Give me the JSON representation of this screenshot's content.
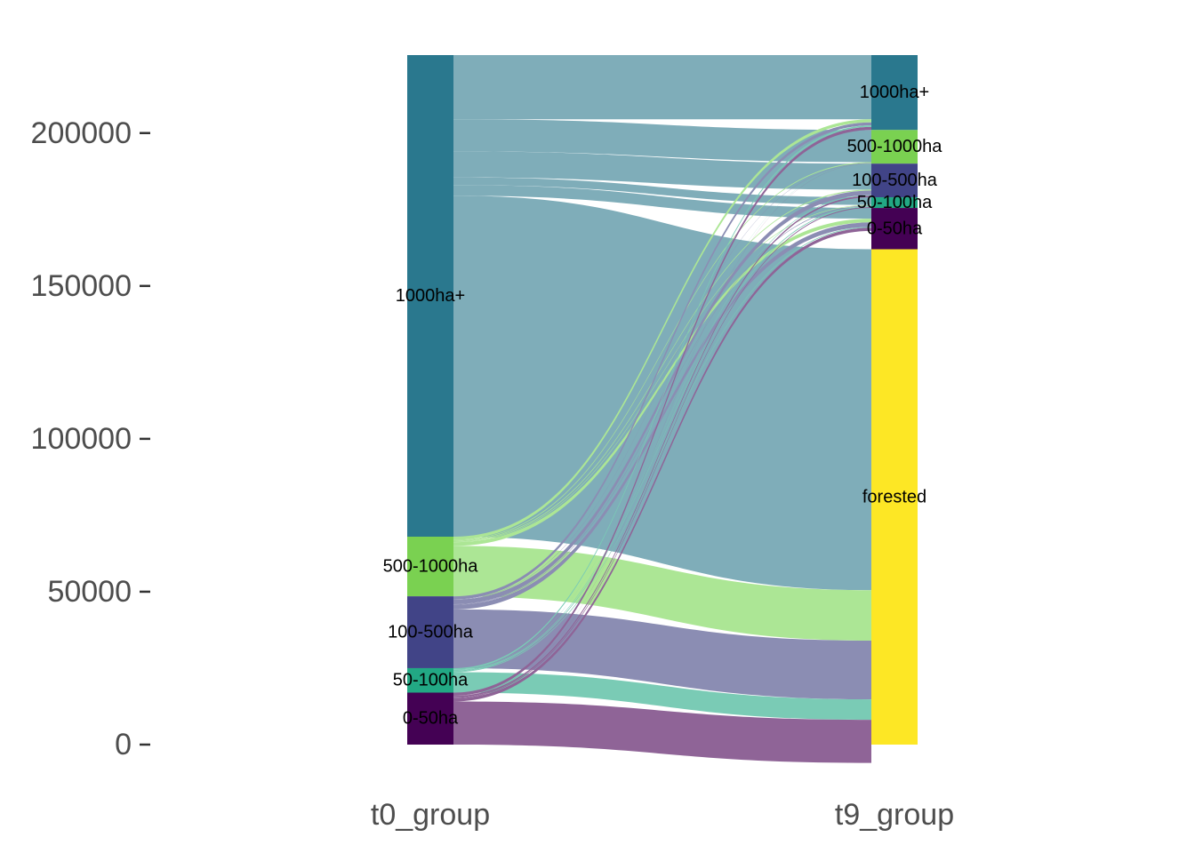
{
  "chart_data": {
    "type": "alluvial",
    "title": "",
    "xlabel": "",
    "ylabel": "",
    "ylim": [
      0,
      225500
    ],
    "y_ticks": [
      0,
      50000,
      100000,
      150000,
      200000
    ],
    "y_tick_labels": [
      "0",
      "50000",
      "100000",
      "150000",
      "200000"
    ],
    "axes": [
      "t0_group",
      "t9_group"
    ],
    "strata": {
      "t0_group": [
        {
          "name": "1000ha+",
          "value": 157500,
          "color": "#2a788e"
        },
        {
          "name": "500-1000ha",
          "value": 19500,
          "color": "#7ad151"
        },
        {
          "name": "100-500ha",
          "value": 23500,
          "color": "#414487"
        },
        {
          "name": "50-100ha",
          "value": 8000,
          "color": "#22a884"
        },
        {
          "name": "0-50ha",
          "value": 17000,
          "color": "#440154"
        }
      ],
      "t9_group": [
        {
          "name": "1000ha+",
          "value": 24500,
          "color": "#2a788e"
        },
        {
          "name": "500-1000ha",
          "value": 11000,
          "color": "#7ad151"
        },
        {
          "name": "100-500ha",
          "value": 11000,
          "color": "#414487"
        },
        {
          "name": "50-100ha",
          "value": 3500,
          "color": "#22a884"
        },
        {
          "name": "0-50ha",
          "value": 13500,
          "color": "#440154"
        },
        {
          "name": "forested",
          "value": 162000,
          "color": "#fde725"
        }
      ]
    },
    "flows": [
      {
        "from": "1000ha+",
        "to": "1000ha+",
        "value": 21000
      },
      {
        "from": "1000ha+",
        "to": "500-1000ha",
        "value": 10500
      },
      {
        "from": "1000ha+",
        "to": "100-500ha",
        "value": 8500
      },
      {
        "from": "1000ha+",
        "to": "50-100ha",
        "value": 2500
      },
      {
        "from": "1000ha+",
        "to": "0-50ha",
        "value": 3500
      },
      {
        "from": "1000ha+",
        "to": "forested",
        "value": 111500
      },
      {
        "from": "500-1000ha",
        "to": "1000ha+",
        "value": 1000
      },
      {
        "from": "500-1000ha",
        "to": "500-1000ha",
        "value": 300
      },
      {
        "from": "500-1000ha",
        "to": "100-500ha",
        "value": 300
      },
      {
        "from": "500-1000ha",
        "to": "50-100ha",
        "value": 200
      },
      {
        "from": "500-1000ha",
        "to": "0-50ha",
        "value": 1200
      },
      {
        "from": "500-1000ha",
        "to": "forested",
        "value": 16500
      },
      {
        "from": "100-500ha",
        "to": "1000ha+",
        "value": 1000
      },
      {
        "from": "100-500ha",
        "to": "500-1000ha",
        "value": 100
      },
      {
        "from": "100-500ha",
        "to": "100-500ha",
        "value": 1500
      },
      {
        "from": "100-500ha",
        "to": "50-100ha",
        "value": 200
      },
      {
        "from": "100-500ha",
        "to": "0-50ha",
        "value": 1500
      },
      {
        "from": "100-500ha",
        "to": "forested",
        "value": 19200
      },
      {
        "from": "50-100ha",
        "to": "1000ha+",
        "value": 500
      },
      {
        "from": "50-100ha",
        "to": "500-1000ha",
        "value": 50
      },
      {
        "from": "50-100ha",
        "to": "100-500ha",
        "value": 200
      },
      {
        "from": "50-100ha",
        "to": "50-100ha",
        "value": 300
      },
      {
        "from": "50-100ha",
        "to": "0-50ha",
        "value": 250
      },
      {
        "from": "50-100ha",
        "to": "forested",
        "value": 6700
      },
      {
        "from": "0-50ha",
        "to": "1000ha+",
        "value": 1000
      },
      {
        "from": "0-50ha",
        "to": "500-1000ha",
        "value": 50
      },
      {
        "from": "0-50ha",
        "to": "100-500ha",
        "value": 500
      },
      {
        "from": "0-50ha",
        "to": "50-100ha",
        "value": 300
      },
      {
        "from": "0-50ha",
        "to": "0-50ha",
        "value": 1050
      },
      {
        "from": "0-50ha",
        "to": "forested",
        "value": 14100
      }
    ],
    "flow_colors": {
      "1000ha+": "#7fadb9",
      "500-1000ha": "#ace695",
      "100-500ha": "#8b8db3",
      "50-100ha": "#7acbb5",
      "0-50ha": "#8f6497"
    }
  }
}
